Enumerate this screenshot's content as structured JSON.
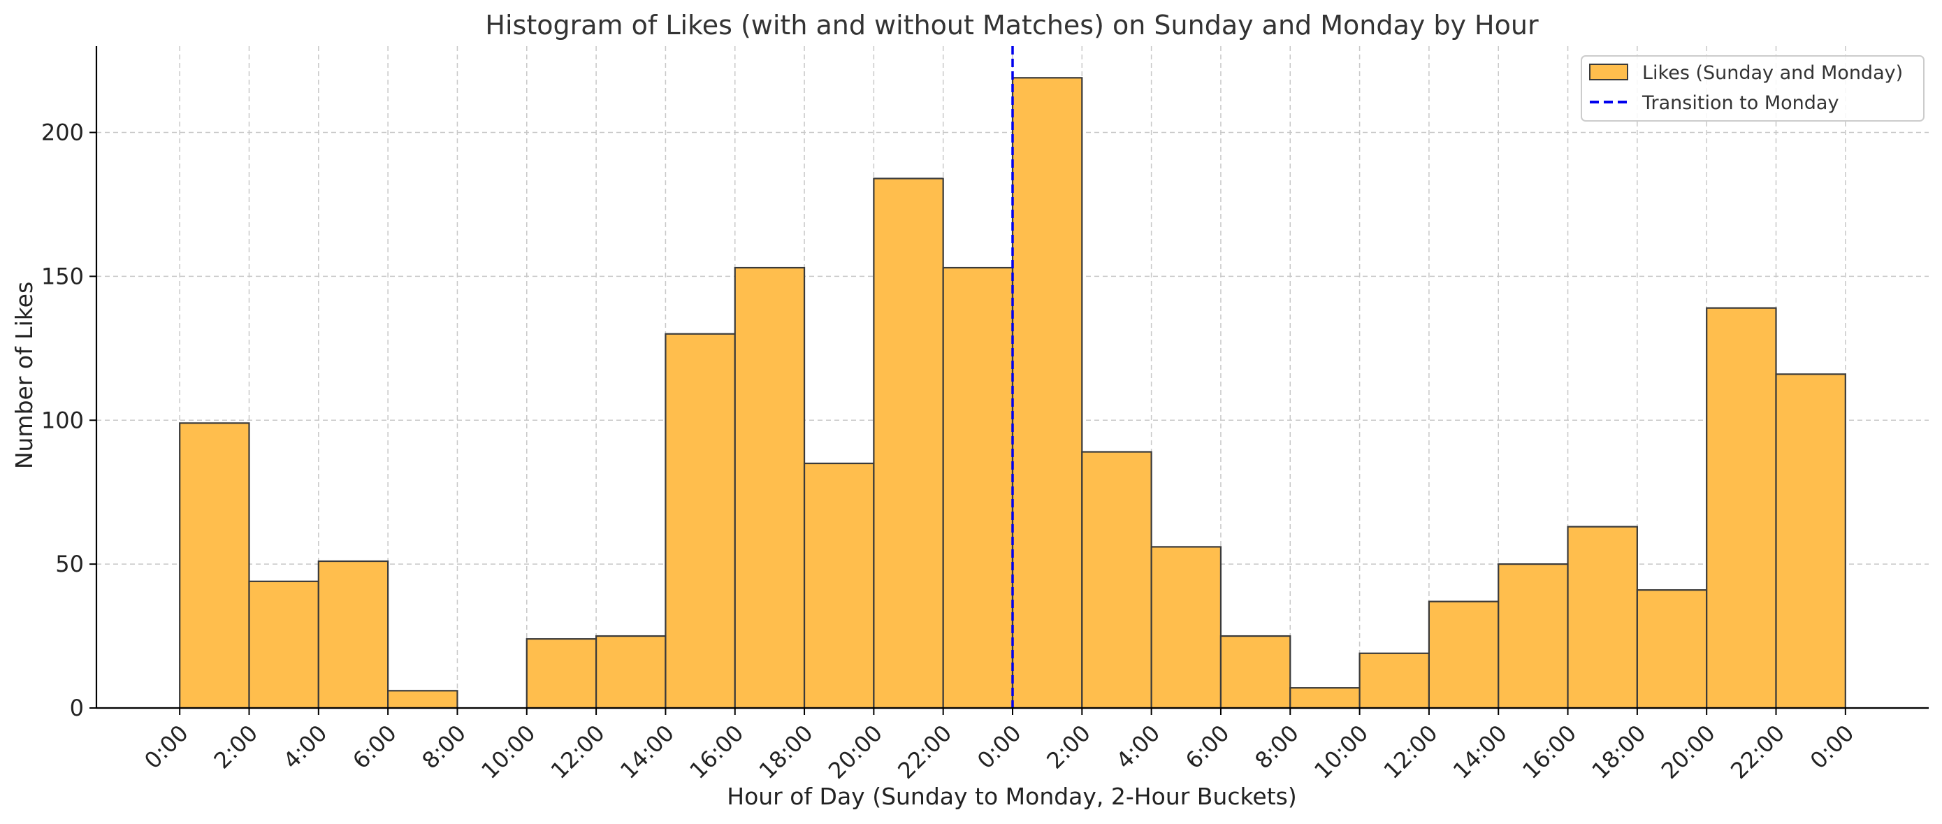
{
  "chart_data": {
    "type": "bar",
    "title": "Histogram of Likes (with and without Matches) on Sunday and Monday by Hour",
    "xlabel": "Hour of Day (Sunday to Monday, 2-Hour Buckets)",
    "ylabel": "Number of Likes",
    "ylim": [
      0,
      230
    ],
    "y_ticks": [
      0,
      50,
      100,
      150,
      200
    ],
    "x_tick_labels": [
      "0:00",
      "2:00",
      "4:00",
      "6:00",
      "8:00",
      "10:00",
      "12:00",
      "14:00",
      "16:00",
      "18:00",
      "20:00",
      "22:00",
      "0:00",
      "2:00",
      "4:00",
      "6:00",
      "8:00",
      "10:00",
      "12:00",
      "14:00",
      "16:00",
      "18:00",
      "20:00",
      "22:00",
      "0:00"
    ],
    "x_range_hours": [
      -2.4,
      50.4
    ],
    "series": [
      {
        "name": "Likes (Sunday and Monday)",
        "bin_start_hours": [
          0,
          2,
          4,
          6,
          8,
          10,
          12,
          14,
          16,
          18,
          20,
          22,
          24,
          26,
          28,
          30,
          32,
          34,
          36,
          38,
          40,
          42,
          44,
          46
        ],
        "bin_width_hours": 2,
        "values": [
          99,
          44,
          51,
          6,
          0,
          24,
          25,
          130,
          153,
          85,
          184,
          153,
          219,
          89,
          56,
          25,
          7,
          19,
          37,
          50,
          63,
          41,
          139,
          116
        ],
        "color": "#FFBE4D"
      }
    ],
    "annotations": [
      {
        "type": "vline",
        "x_hours": 24,
        "label": "Transition to Monday",
        "color": "#0000EE",
        "style": "dashed"
      }
    ],
    "grid": true,
    "legend_position": "top-right"
  }
}
